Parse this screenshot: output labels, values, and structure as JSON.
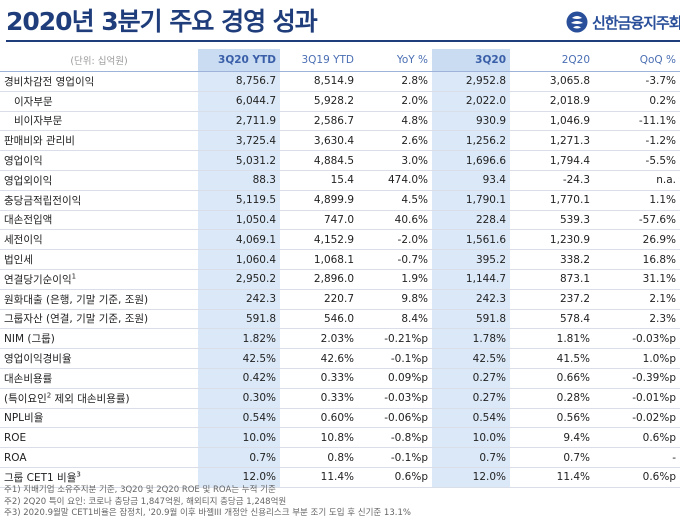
{
  "title": "2020년 3분기 주요 경영 성과",
  "logo": {
    "text": "신한금융지주회사"
  },
  "colors": {
    "title": "#1f3d7a",
    "header_text": "#4b6fb3",
    "highlight": "#dbe8f7"
  },
  "table": {
    "columns": [
      "(단위: 십억원)",
      "3Q20 YTD",
      "3Q19 YTD",
      "YoY %",
      "3Q20",
      "2Q20",
      "QoQ %"
    ],
    "rows": [
      {
        "label": "경비차감전 영업이익",
        "values": [
          "8,756.7",
          "8,514.9",
          "2.8%",
          "2,952.8",
          "3,065.8",
          "-3.7%"
        ]
      },
      {
        "label": "이자부문",
        "indent": true,
        "values": [
          "6,044.7",
          "5,928.2",
          "2.0%",
          "2,022.0",
          "2,018.9",
          "0.2%"
        ]
      },
      {
        "label": "비이자부문",
        "indent": true,
        "values": [
          "2,711.9",
          "2,586.7",
          "4.8%",
          "930.9",
          "1,046.9",
          "-11.1%"
        ]
      },
      {
        "label": "판매비와 관리비",
        "values": [
          "3,725.4",
          "3,630.4",
          "2.6%",
          "1,256.2",
          "1,271.3",
          "-1.2%"
        ]
      },
      {
        "label": "영업이익",
        "values": [
          "5,031.2",
          "4,884.5",
          "3.0%",
          "1,696.6",
          "1,794.4",
          "-5.5%"
        ]
      },
      {
        "label": "영업외이익",
        "values": [
          "88.3",
          "15.4",
          "474.0%",
          "93.4",
          "-24.3",
          "n.a."
        ]
      },
      {
        "label": "충당금적립전이익",
        "values": [
          "5,119.5",
          "4,899.9",
          "4.5%",
          "1,790.1",
          "1,770.1",
          "1.1%"
        ]
      },
      {
        "label": "대손전입액",
        "values": [
          "1,050.4",
          "747.0",
          "40.6%",
          "228.4",
          "539.3",
          "-57.6%"
        ]
      },
      {
        "label": "세전이익",
        "values": [
          "4,069.1",
          "4,152.9",
          "-2.0%",
          "1,561.6",
          "1,230.9",
          "26.9%"
        ]
      },
      {
        "label": "법인세",
        "values": [
          "1,060.4",
          "1,068.1",
          "-0.7%",
          "395.2",
          "338.2",
          "16.8%"
        ]
      },
      {
        "label": "연결당기순이익",
        "sup": "1",
        "values": [
          "2,950.2",
          "2,896.0",
          "1.9%",
          "1,144.7",
          "873.1",
          "31.1%"
        ]
      },
      {
        "label": "원화대출 (은행, 기말 기준, 조원)",
        "values": [
          "242.3",
          "220.7",
          "9.8%",
          "242.3",
          "237.2",
          "2.1%"
        ]
      },
      {
        "label": "그룹자산 (연결, 기말 기준, 조원)",
        "values": [
          "591.8",
          "546.0",
          "8.4%",
          "591.8",
          "578.4",
          "2.3%"
        ]
      },
      {
        "label": "NIM (그룹)",
        "values": [
          "1.82%",
          "2.03%",
          "-0.21%p",
          "1.78%",
          "1.81%",
          "-0.03%p"
        ]
      },
      {
        "label": "영업이익경비율",
        "values": [
          "42.5%",
          "42.6%",
          "-0.1%p",
          "42.5%",
          "41.5%",
          "1.0%p"
        ]
      },
      {
        "label": "대손비용률",
        "values": [
          "0.42%",
          "0.33%",
          "0.09%p",
          "0.27%",
          "0.66%",
          "-0.39%p"
        ]
      },
      {
        "label": "(특이요인",
        "sup": "2",
        "label_after": " 제외 대손비용률)",
        "values": [
          "0.30%",
          "0.33%",
          "-0.03%p",
          "0.27%",
          "0.28%",
          "-0.01%p"
        ]
      },
      {
        "label": "NPL비율",
        "values": [
          "0.54%",
          "0.60%",
          "-0.06%p",
          "0.54%",
          "0.56%",
          "-0.02%p"
        ]
      },
      {
        "label": "ROE",
        "values": [
          "10.0%",
          "10.8%",
          "-0.8%p",
          "10.0%",
          "9.4%",
          "0.6%p"
        ]
      },
      {
        "label": "ROA",
        "values": [
          "0.7%",
          "0.8%",
          "-0.1%p",
          "0.7%",
          "0.7%",
          "-"
        ]
      },
      {
        "label": "그룹 CET1 비율",
        "sup": "3",
        "values": [
          "12.0%",
          "11.4%",
          "0.6%p",
          "12.0%",
          "11.4%",
          "0.6%p"
        ]
      }
    ]
  },
  "footnotes": [
    "주1) 지배기업 소유주지분 기준, 3Q20 및 2Q20 ROE 및 ROA는 누적 기준",
    "주2) 2Q20 특이 요인: 코로나 충당금 1,847억원, 해외티지 충당금 1,248억원",
    "주3) 2020.9월말 CET1비율은 잠정치, '20.9월 이후 바젤III 개정안 신용리스크 부분 조기 도입 후 신기준 13.1%"
  ]
}
